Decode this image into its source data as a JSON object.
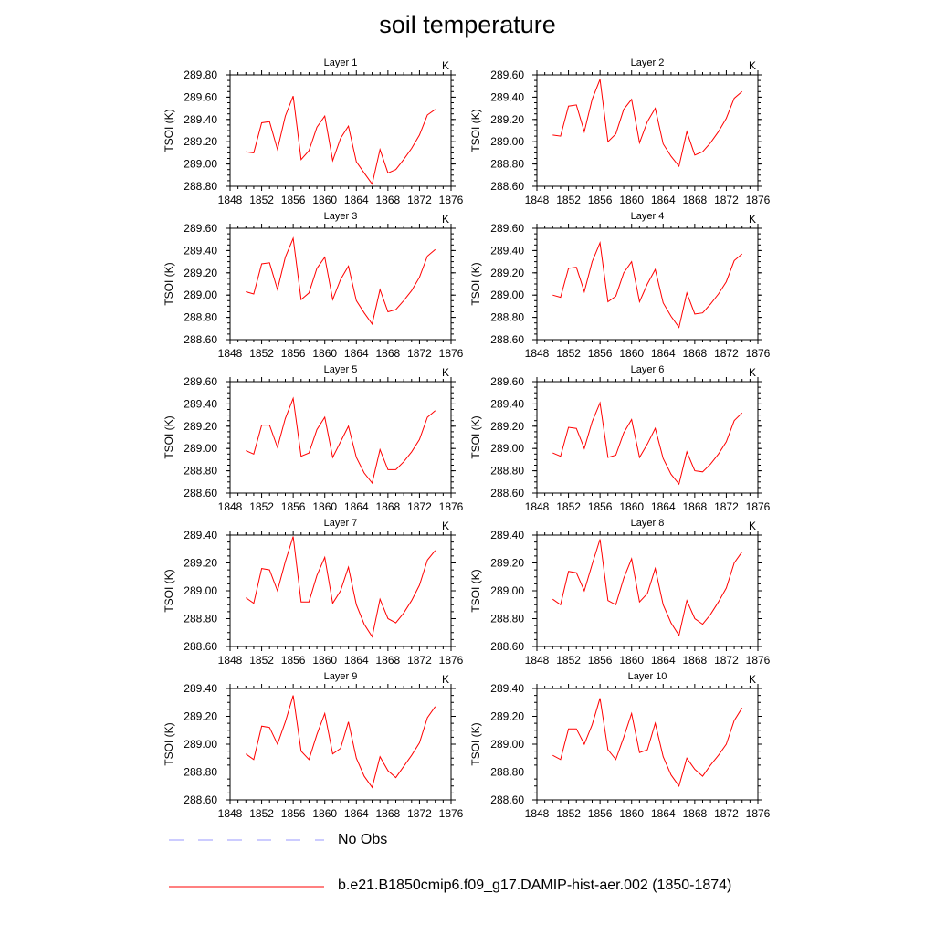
{
  "title": "soil temperature",
  "legend": {
    "obs_label": "No Obs",
    "obs_color": "#9999ff",
    "model_label": "b.e21.B1850cmip6.f09_g17.DAMIP-hist-aer.002 (1850-1874)",
    "model_color": "#ff0000"
  },
  "chart_data": [
    {
      "type": "line",
      "title": "Layer 1",
      "units": "K",
      "ylabel": "TSOI  (K)",
      "xlim": [
        1848,
        1876
      ],
      "xticks": [
        1848,
        1852,
        1856,
        1860,
        1864,
        1868,
        1872,
        1876
      ],
      "ylim": [
        288.8,
        289.8
      ],
      "yticks": [
        "288.80",
        "289.00",
        "289.20",
        "289.40",
        "289.60",
        "289.80"
      ],
      "x": [
        1850,
        1851,
        1852,
        1853,
        1854,
        1855,
        1856,
        1857,
        1858,
        1859,
        1860,
        1861,
        1862,
        1863,
        1864,
        1865,
        1866,
        1867,
        1868,
        1869,
        1870,
        1871,
        1872,
        1873,
        1874
      ],
      "y": [
        289.11,
        289.1,
        289.37,
        289.38,
        289.13,
        289.43,
        289.61,
        289.04,
        289.12,
        289.33,
        289.43,
        289.03,
        289.23,
        289.34,
        289.02,
        288.92,
        288.82,
        289.13,
        288.92,
        288.95,
        289.04,
        289.14,
        289.26,
        289.44,
        289.49
      ]
    },
    {
      "type": "line",
      "title": "Layer 2",
      "units": "K",
      "ylabel": "TSOI  (K)",
      "xlim": [
        1848,
        1876
      ],
      "xticks": [
        1848,
        1852,
        1856,
        1860,
        1864,
        1868,
        1872,
        1876
      ],
      "ylim": [
        288.6,
        289.6
      ],
      "yticks": [
        "288.60",
        "288.80",
        "289.00",
        "289.20",
        "289.40",
        "289.60"
      ],
      "x": [
        1850,
        1851,
        1852,
        1853,
        1854,
        1855,
        1856,
        1857,
        1858,
        1859,
        1860,
        1861,
        1862,
        1863,
        1864,
        1865,
        1866,
        1867,
        1868,
        1869,
        1870,
        1871,
        1872,
        1873,
        1874
      ],
      "y": [
        289.06,
        289.05,
        289.32,
        289.33,
        289.09,
        289.38,
        289.56,
        289.0,
        289.07,
        289.29,
        289.38,
        288.99,
        289.18,
        289.3,
        288.98,
        288.87,
        288.78,
        289.09,
        288.88,
        288.91,
        288.99,
        289.09,
        289.21,
        289.39,
        289.45
      ]
    },
    {
      "type": "line",
      "title": "Layer 3",
      "units": "K",
      "ylabel": "TSOI  (K)",
      "xlim": [
        1848,
        1876
      ],
      "xticks": [
        1848,
        1852,
        1856,
        1860,
        1864,
        1868,
        1872,
        1876
      ],
      "ylim": [
        288.6,
        289.6
      ],
      "yticks": [
        "288.60",
        "288.80",
        "289.00",
        "289.20",
        "289.40",
        "289.60"
      ],
      "x": [
        1850,
        1851,
        1852,
        1853,
        1854,
        1855,
        1856,
        1857,
        1858,
        1859,
        1860,
        1861,
        1862,
        1863,
        1864,
        1865,
        1866,
        1867,
        1868,
        1869,
        1870,
        1871,
        1872,
        1873,
        1874
      ],
      "y": [
        289.03,
        289.01,
        289.28,
        289.29,
        289.05,
        289.34,
        289.51,
        288.96,
        289.02,
        289.24,
        289.34,
        288.96,
        289.14,
        289.26,
        288.95,
        288.84,
        288.74,
        289.05,
        288.85,
        288.87,
        288.95,
        289.04,
        289.16,
        289.35,
        289.41
      ]
    },
    {
      "type": "line",
      "title": "Layer 4",
      "units": "K",
      "ylabel": "TSOI  (K)",
      "xlim": [
        1848,
        1876
      ],
      "xticks": [
        1848,
        1852,
        1856,
        1860,
        1864,
        1868,
        1872,
        1876
      ],
      "ylim": [
        288.6,
        289.6
      ],
      "yticks": [
        "288.60",
        "288.80",
        "289.00",
        "289.20",
        "289.40",
        "289.60"
      ],
      "x": [
        1850,
        1851,
        1852,
        1853,
        1854,
        1855,
        1856,
        1857,
        1858,
        1859,
        1860,
        1861,
        1862,
        1863,
        1864,
        1865,
        1866,
        1867,
        1868,
        1869,
        1870,
        1871,
        1872,
        1873,
        1874
      ],
      "y": [
        289.0,
        288.98,
        289.24,
        289.25,
        289.03,
        289.3,
        289.47,
        288.94,
        288.99,
        289.2,
        289.3,
        288.94,
        289.1,
        289.23,
        288.93,
        288.81,
        288.71,
        289.02,
        288.83,
        288.84,
        288.92,
        289.01,
        289.12,
        289.31,
        289.37
      ]
    },
    {
      "type": "line",
      "title": "Layer 5",
      "units": "K",
      "ylabel": "TSOI  (K)",
      "xlim": [
        1848,
        1876
      ],
      "xticks": [
        1848,
        1852,
        1856,
        1860,
        1864,
        1868,
        1872,
        1876
      ],
      "ylim": [
        288.6,
        289.6
      ],
      "yticks": [
        "288.60",
        "288.80",
        "289.00",
        "289.20",
        "289.40",
        "289.60"
      ],
      "x": [
        1850,
        1851,
        1852,
        1853,
        1854,
        1855,
        1856,
        1857,
        1858,
        1859,
        1860,
        1861,
        1862,
        1863,
        1864,
        1865,
        1866,
        1867,
        1868,
        1869,
        1870,
        1871,
        1872,
        1873,
        1874
      ],
      "y": [
        288.98,
        288.95,
        289.21,
        289.21,
        289.01,
        289.27,
        289.45,
        288.93,
        288.96,
        289.17,
        289.28,
        288.92,
        289.06,
        289.2,
        288.92,
        288.78,
        288.69,
        288.99,
        288.81,
        288.81,
        288.88,
        288.97,
        289.08,
        289.28,
        289.34
      ]
    },
    {
      "type": "line",
      "title": "Layer 6",
      "units": "K",
      "ylabel": "TSOI  (K)",
      "xlim": [
        1848,
        1876
      ],
      "xticks": [
        1848,
        1852,
        1856,
        1860,
        1864,
        1868,
        1872,
        1876
      ],
      "ylim": [
        288.6,
        289.6
      ],
      "yticks": [
        "288.60",
        "288.80",
        "289.00",
        "289.20",
        "289.40",
        "289.60"
      ],
      "x": [
        1850,
        1851,
        1852,
        1853,
        1854,
        1855,
        1856,
        1857,
        1858,
        1859,
        1860,
        1861,
        1862,
        1863,
        1864,
        1865,
        1866,
        1867,
        1868,
        1869,
        1870,
        1871,
        1872,
        1873,
        1874
      ],
      "y": [
        288.96,
        288.93,
        289.19,
        289.18,
        289.0,
        289.24,
        289.41,
        288.92,
        288.94,
        289.14,
        289.26,
        288.92,
        289.04,
        289.18,
        288.91,
        288.77,
        288.68,
        288.97,
        288.8,
        288.79,
        288.86,
        288.95,
        289.06,
        289.25,
        289.32
      ]
    },
    {
      "type": "line",
      "title": "Layer 7",
      "units": "K",
      "ylabel": "TSOI  (K)",
      "xlim": [
        1848,
        1876
      ],
      "xticks": [
        1848,
        1852,
        1856,
        1860,
        1864,
        1868,
        1872,
        1876
      ],
      "ylim": [
        288.6,
        289.4
      ],
      "yticks": [
        "288.60",
        "288.80",
        "289.00",
        "289.20",
        "289.40"
      ],
      "x": [
        1850,
        1851,
        1852,
        1853,
        1854,
        1855,
        1856,
        1857,
        1858,
        1859,
        1860,
        1861,
        1862,
        1863,
        1864,
        1865,
        1866,
        1867,
        1868,
        1869,
        1870,
        1871,
        1872,
        1873,
        1874
      ],
      "y": [
        288.95,
        288.91,
        289.16,
        289.15,
        289.0,
        289.21,
        289.39,
        288.92,
        288.92,
        289.11,
        289.24,
        288.91,
        289.0,
        289.17,
        288.9,
        288.76,
        288.67,
        288.94,
        288.8,
        288.77,
        288.84,
        288.93,
        289.04,
        289.22,
        289.29
      ]
    },
    {
      "type": "line",
      "title": "Layer 8",
      "units": "K",
      "ylabel": "TSOI  (K)",
      "xlim": [
        1848,
        1876
      ],
      "xticks": [
        1848,
        1852,
        1856,
        1860,
        1864,
        1868,
        1872,
        1876
      ],
      "ylim": [
        288.6,
        289.4
      ],
      "yticks": [
        "288.60",
        "288.80",
        "289.00",
        "289.20",
        "289.40"
      ],
      "x": [
        1850,
        1851,
        1852,
        1853,
        1854,
        1855,
        1856,
        1857,
        1858,
        1859,
        1860,
        1861,
        1862,
        1863,
        1864,
        1865,
        1866,
        1867,
        1868,
        1869,
        1870,
        1871,
        1872,
        1873,
        1874
      ],
      "y": [
        288.94,
        288.9,
        289.14,
        289.13,
        289.0,
        289.19,
        289.37,
        288.93,
        288.9,
        289.09,
        289.23,
        288.92,
        288.98,
        289.16,
        288.9,
        288.77,
        288.68,
        288.93,
        288.8,
        288.76,
        288.83,
        288.92,
        289.02,
        289.2,
        289.28
      ]
    },
    {
      "type": "line",
      "title": "Layer 9",
      "units": "K",
      "ylabel": "TSOI  (K)",
      "xlim": [
        1848,
        1876
      ],
      "xticks": [
        1848,
        1852,
        1856,
        1860,
        1864,
        1868,
        1872,
        1876
      ],
      "ylim": [
        288.6,
        289.4
      ],
      "yticks": [
        "288.60",
        "288.80",
        "289.00",
        "289.20",
        "289.40"
      ],
      "x": [
        1850,
        1851,
        1852,
        1853,
        1854,
        1855,
        1856,
        1857,
        1858,
        1859,
        1860,
        1861,
        1862,
        1863,
        1864,
        1865,
        1866,
        1867,
        1868,
        1869,
        1870,
        1871,
        1872,
        1873,
        1874
      ],
      "y": [
        288.93,
        288.89,
        289.13,
        289.12,
        289.0,
        289.16,
        289.35,
        288.95,
        288.89,
        289.07,
        289.22,
        288.93,
        288.97,
        289.16,
        288.9,
        288.77,
        288.69,
        288.91,
        288.81,
        288.76,
        288.84,
        288.92,
        289.01,
        289.19,
        289.27
      ]
    },
    {
      "type": "line",
      "title": "Layer 10",
      "units": "K",
      "ylabel": "TSOI  (K)",
      "xlim": [
        1848,
        1876
      ],
      "xticks": [
        1848,
        1852,
        1856,
        1860,
        1864,
        1868,
        1872,
        1876
      ],
      "ylim": [
        288.6,
        289.4
      ],
      "yticks": [
        "288.60",
        "288.80",
        "289.00",
        "289.20",
        "289.40"
      ],
      "x": [
        1850,
        1851,
        1852,
        1853,
        1854,
        1855,
        1856,
        1857,
        1858,
        1859,
        1860,
        1861,
        1862,
        1863,
        1864,
        1865,
        1866,
        1867,
        1868,
        1869,
        1870,
        1871,
        1872,
        1873,
        1874
      ],
      "y": [
        288.92,
        288.89,
        289.11,
        289.11,
        289.0,
        289.14,
        289.33,
        288.96,
        288.89,
        289.05,
        289.22,
        288.94,
        288.96,
        289.15,
        288.91,
        288.78,
        288.7,
        288.9,
        288.82,
        288.77,
        288.85,
        288.92,
        289.0,
        289.17,
        289.26
      ]
    }
  ]
}
